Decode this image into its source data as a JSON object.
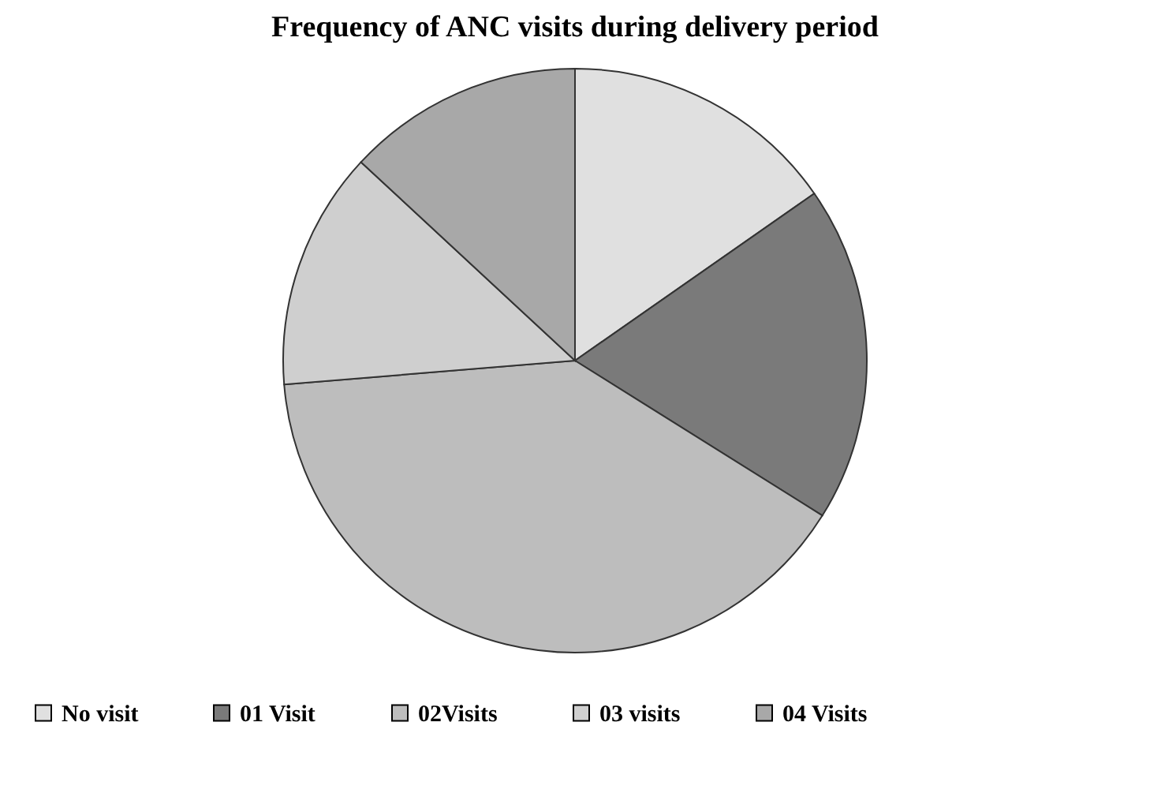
{
  "chart_data": {
    "type": "pie",
    "title": "Frequency of ANC visits during delivery period",
    "categories": [
      "No visit",
      "01 Visit",
      "02Visits",
      "03 visits",
      "04 Visits"
    ],
    "values": [
      15.3,
      18.6,
      39.8,
      13.2,
      13.1
    ],
    "colors": [
      "#e0e0e0",
      "#7a7a7a",
      "#bdbdbd",
      "#cfcfcf",
      "#a8a8a8"
    ],
    "legend": "bottom"
  }
}
